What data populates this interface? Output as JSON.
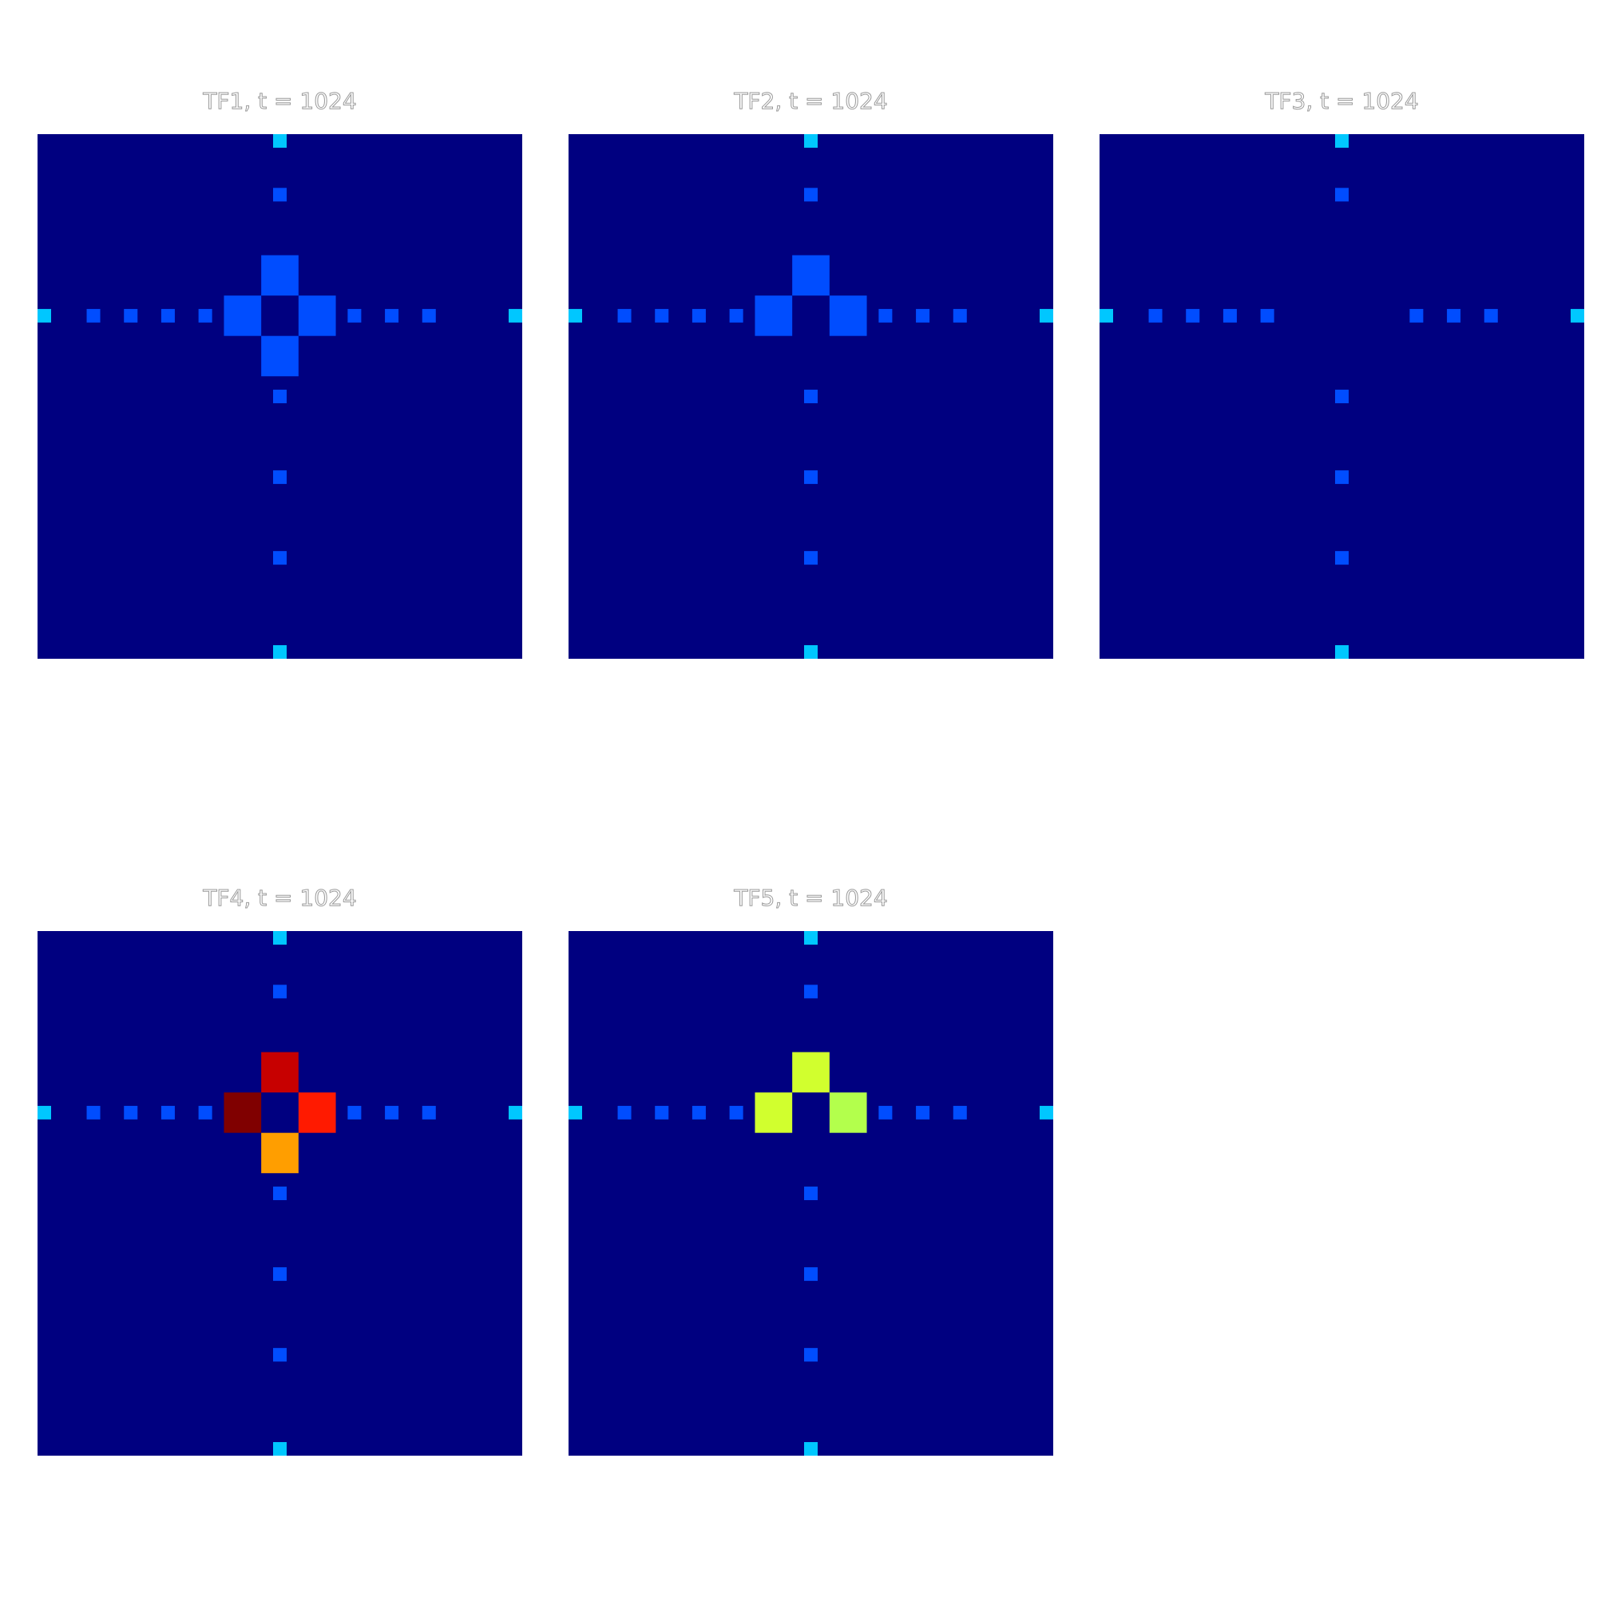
{
  "chart_data": [
    {
      "type": "heatmap",
      "title": "TF1, t = 1024",
      "colormap": "jet",
      "grid_size": [
        13,
        13
      ],
      "background_value": 0.0,
      "cells": [
        {
          "row": 3,
          "col": 6,
          "value": 0.2
        },
        {
          "row": 4,
          "col": 5,
          "value": 0.2
        },
        {
          "row": 4,
          "col": 7,
          "value": 0.2
        },
        {
          "row": 5,
          "col": 6,
          "value": 0.2
        }
      ],
      "markers": [
        {
          "row": 0,
          "col": 6,
          "value": 0.32,
          "pos": "edge-top"
        },
        {
          "row": 1,
          "col": 6,
          "value": 0.2
        },
        {
          "row": 4,
          "col": 0,
          "value": 0.32,
          "pos": "edge-left"
        },
        {
          "row": 4,
          "col": 1,
          "value": 0.2
        },
        {
          "row": 4,
          "col": 2,
          "value": 0.2
        },
        {
          "row": 4,
          "col": 3,
          "value": 0.2
        },
        {
          "row": 4,
          "col": 4,
          "value": 0.2
        },
        {
          "row": 4,
          "col": 8,
          "value": 0.2
        },
        {
          "row": 4,
          "col": 9,
          "value": 0.2
        },
        {
          "row": 4,
          "col": 10,
          "value": 0.2
        },
        {
          "row": 4,
          "col": 12,
          "value": 0.32,
          "pos": "edge-right"
        },
        {
          "row": 6,
          "col": 6,
          "value": 0.2
        },
        {
          "row": 8,
          "col": 6,
          "value": 0.2
        },
        {
          "row": 10,
          "col": 6,
          "value": 0.2
        },
        {
          "row": 12,
          "col": 6,
          "value": 0.32,
          "pos": "edge-bottom"
        }
      ]
    },
    {
      "type": "heatmap",
      "title": "TF2, t = 1024",
      "colormap": "jet",
      "grid_size": [
        13,
        13
      ],
      "background_value": 0.0,
      "cells": [
        {
          "row": 3,
          "col": 6,
          "value": 0.2
        },
        {
          "row": 4,
          "col": 5,
          "value": 0.2
        },
        {
          "row": 4,
          "col": 7,
          "value": 0.2
        }
      ],
      "markers": [
        {
          "row": 0,
          "col": 6,
          "value": 0.32,
          "pos": "edge-top"
        },
        {
          "row": 1,
          "col": 6,
          "value": 0.2
        },
        {
          "row": 4,
          "col": 0,
          "value": 0.32,
          "pos": "edge-left"
        },
        {
          "row": 4,
          "col": 1,
          "value": 0.2
        },
        {
          "row": 4,
          "col": 2,
          "value": 0.2
        },
        {
          "row": 4,
          "col": 3,
          "value": 0.2
        },
        {
          "row": 4,
          "col": 4,
          "value": 0.2
        },
        {
          "row": 4,
          "col": 8,
          "value": 0.2
        },
        {
          "row": 4,
          "col": 9,
          "value": 0.2
        },
        {
          "row": 4,
          "col": 10,
          "value": 0.2
        },
        {
          "row": 4,
          "col": 12,
          "value": 0.32,
          "pos": "edge-right"
        },
        {
          "row": 6,
          "col": 6,
          "value": 0.2
        },
        {
          "row": 8,
          "col": 6,
          "value": 0.2
        },
        {
          "row": 10,
          "col": 6,
          "value": 0.2
        },
        {
          "row": 12,
          "col": 6,
          "value": 0.32,
          "pos": "edge-bottom"
        }
      ]
    },
    {
      "type": "heatmap",
      "title": "TF3, t = 1024",
      "colormap": "jet",
      "grid_size": [
        13,
        13
      ],
      "background_value": 0.0,
      "cells": [],
      "markers": [
        {
          "row": 0,
          "col": 6,
          "value": 0.32,
          "pos": "edge-top"
        },
        {
          "row": 1,
          "col": 6,
          "value": 0.2
        },
        {
          "row": 4,
          "col": 0,
          "value": 0.32,
          "pos": "edge-left"
        },
        {
          "row": 4,
          "col": 1,
          "value": 0.2
        },
        {
          "row": 4,
          "col": 2,
          "value": 0.2
        },
        {
          "row": 4,
          "col": 3,
          "value": 0.2
        },
        {
          "row": 4,
          "col": 4,
          "value": 0.2
        },
        {
          "row": 4,
          "col": 8,
          "value": 0.2
        },
        {
          "row": 4,
          "col": 9,
          "value": 0.2
        },
        {
          "row": 4,
          "col": 10,
          "value": 0.2
        },
        {
          "row": 4,
          "col": 12,
          "value": 0.32,
          "pos": "edge-right"
        },
        {
          "row": 6,
          "col": 6,
          "value": 0.2
        },
        {
          "row": 8,
          "col": 6,
          "value": 0.2
        },
        {
          "row": 10,
          "col": 6,
          "value": 0.2
        },
        {
          "row": 12,
          "col": 6,
          "value": 0.32,
          "pos": "edge-bottom"
        }
      ]
    },
    {
      "type": "heatmap",
      "title": "TF4, t = 1024",
      "colormap": "jet",
      "grid_size": [
        13,
        13
      ],
      "background_value": 0.0,
      "cells": [
        {
          "row": 3,
          "col": 6,
          "value": 0.93
        },
        {
          "row": 4,
          "col": 5,
          "value": 1.0
        },
        {
          "row": 4,
          "col": 7,
          "value": 0.85
        },
        {
          "row": 5,
          "col": 6,
          "value": 0.72
        }
      ],
      "markers": [
        {
          "row": 0,
          "col": 6,
          "value": 0.32,
          "pos": "edge-top"
        },
        {
          "row": 1,
          "col": 6,
          "value": 0.2
        },
        {
          "row": 4,
          "col": 0,
          "value": 0.32,
          "pos": "edge-left"
        },
        {
          "row": 4,
          "col": 1,
          "value": 0.2
        },
        {
          "row": 4,
          "col": 2,
          "value": 0.2
        },
        {
          "row": 4,
          "col": 3,
          "value": 0.2
        },
        {
          "row": 4,
          "col": 4,
          "value": 0.2
        },
        {
          "row": 4,
          "col": 8,
          "value": 0.2
        },
        {
          "row": 4,
          "col": 9,
          "value": 0.2
        },
        {
          "row": 4,
          "col": 10,
          "value": 0.2
        },
        {
          "row": 4,
          "col": 12,
          "value": 0.32,
          "pos": "edge-right"
        },
        {
          "row": 6,
          "col": 6,
          "value": 0.2
        },
        {
          "row": 8,
          "col": 6,
          "value": 0.2
        },
        {
          "row": 10,
          "col": 6,
          "value": 0.2
        },
        {
          "row": 12,
          "col": 6,
          "value": 0.32,
          "pos": "edge-bottom"
        }
      ]
    },
    {
      "type": "heatmap",
      "title": "TF5, t = 1024",
      "colormap": "jet",
      "grid_size": [
        13,
        13
      ],
      "background_value": 0.0,
      "cells": [
        {
          "row": 3,
          "col": 6,
          "value": 0.58
        },
        {
          "row": 4,
          "col": 5,
          "value": 0.58
        },
        {
          "row": 4,
          "col": 7,
          "value": 0.55
        }
      ],
      "markers": [
        {
          "row": 0,
          "col": 6,
          "value": 0.32,
          "pos": "edge-top"
        },
        {
          "row": 1,
          "col": 6,
          "value": 0.2
        },
        {
          "row": 4,
          "col": 0,
          "value": 0.32,
          "pos": "edge-left"
        },
        {
          "row": 4,
          "col": 1,
          "value": 0.2
        },
        {
          "row": 4,
          "col": 2,
          "value": 0.2
        },
        {
          "row": 4,
          "col": 3,
          "value": 0.2
        },
        {
          "row": 4,
          "col": 4,
          "value": 0.2
        },
        {
          "row": 4,
          "col": 8,
          "value": 0.2
        },
        {
          "row": 4,
          "col": 9,
          "value": 0.2
        },
        {
          "row": 4,
          "col": 10,
          "value": 0.2
        },
        {
          "row": 4,
          "col": 12,
          "value": 0.32,
          "pos": "edge-right"
        },
        {
          "row": 6,
          "col": 6,
          "value": 0.2
        },
        {
          "row": 8,
          "col": 6,
          "value": 0.2
        },
        {
          "row": 10,
          "col": 6,
          "value": 0.2
        },
        {
          "row": 12,
          "col": 6,
          "value": 0.32,
          "pos": "edge-bottom"
        }
      ]
    }
  ]
}
